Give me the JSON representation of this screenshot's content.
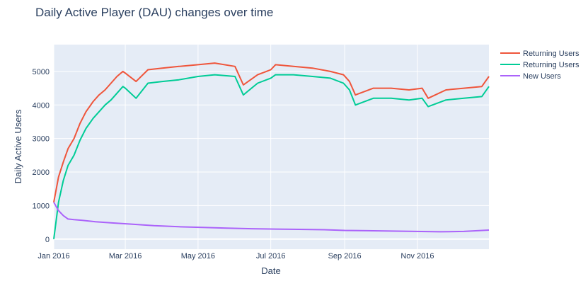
{
  "chart_data": {
    "type": "line",
    "title": "Daily Active Player (DAU) changes over time",
    "xlabel": "Date",
    "ylabel": "Daily Active Users",
    "x_range": [
      "2016-01-01",
      "2016-12-31"
    ],
    "ylim": [
      -300,
      5800
    ],
    "x_ticks": [
      {
        "date": "2016-01-01",
        "label": "Jan 2016"
      },
      {
        "date": "2016-03-01",
        "label": "Mar 2016"
      },
      {
        "date": "2016-05-01",
        "label": "May 2016"
      },
      {
        "date": "2016-07-01",
        "label": "Jul 2016"
      },
      {
        "date": "2016-09-01",
        "label": "Sep 2016"
      },
      {
        "date": "2016-11-01",
        "label": "Nov 2016"
      }
    ],
    "y_ticks": [
      0,
      1000,
      2000,
      3000,
      4000,
      5000
    ],
    "grid": true,
    "legend_position": "top-right",
    "background_color": "#e5ecf6",
    "series": [
      {
        "name": "Returning Users",
        "color": "#ef553b",
        "points": [
          [
            "2016-01-01",
            1100
          ],
          [
            "2016-01-05",
            1850
          ],
          [
            "2016-01-09",
            2300
          ],
          [
            "2016-01-13",
            2700
          ],
          [
            "2016-01-18",
            3000
          ],
          [
            "2016-01-23",
            3450
          ],
          [
            "2016-01-28",
            3800
          ],
          [
            "2016-02-03",
            4100
          ],
          [
            "2016-02-08",
            4300
          ],
          [
            "2016-02-13",
            4450
          ],
          [
            "2016-02-18",
            4650
          ],
          [
            "2016-02-23",
            4850
          ],
          [
            "2016-02-28",
            5000
          ],
          [
            "2016-03-01",
            4950
          ],
          [
            "2016-03-10",
            4700
          ],
          [
            "2016-03-20",
            5050
          ],
          [
            "2016-04-01",
            5100
          ],
          [
            "2016-04-15",
            5150
          ],
          [
            "2016-05-01",
            5200
          ],
          [
            "2016-05-15",
            5250
          ],
          [
            "2016-06-01",
            5150
          ],
          [
            "2016-06-08",
            4600
          ],
          [
            "2016-06-20",
            4900
          ],
          [
            "2016-07-01",
            5050
          ],
          [
            "2016-07-05",
            5200
          ],
          [
            "2016-07-20",
            5150
          ],
          [
            "2016-08-05",
            5100
          ],
          [
            "2016-08-20",
            5000
          ],
          [
            "2016-08-31",
            4900
          ],
          [
            "2016-09-05",
            4700
          ],
          [
            "2016-09-10",
            4300
          ],
          [
            "2016-09-25",
            4500
          ],
          [
            "2016-10-10",
            4500
          ],
          [
            "2016-10-25",
            4450
          ],
          [
            "2016-11-05",
            4500
          ],
          [
            "2016-11-10",
            4200
          ],
          [
            "2016-11-25",
            4450
          ],
          [
            "2016-12-10",
            4500
          ],
          [
            "2016-12-25",
            4550
          ],
          [
            "2016-12-31",
            4850
          ]
        ]
      },
      {
        "name": "Returning Users",
        "color": "#00cc96",
        "points": [
          [
            "2016-01-01",
            0
          ],
          [
            "2016-01-05",
            1100
          ],
          [
            "2016-01-09",
            1750
          ],
          [
            "2016-01-13",
            2200
          ],
          [
            "2016-01-18",
            2500
          ],
          [
            "2016-01-23",
            2950
          ],
          [
            "2016-01-28",
            3300
          ],
          [
            "2016-02-03",
            3600
          ],
          [
            "2016-02-08",
            3800
          ],
          [
            "2016-02-13",
            4000
          ],
          [
            "2016-02-18",
            4150
          ],
          [
            "2016-02-23",
            4350
          ],
          [
            "2016-02-28",
            4550
          ],
          [
            "2016-03-01",
            4500
          ],
          [
            "2016-03-10",
            4200
          ],
          [
            "2016-03-20",
            4650
          ],
          [
            "2016-04-01",
            4700
          ],
          [
            "2016-04-15",
            4750
          ],
          [
            "2016-05-01",
            4850
          ],
          [
            "2016-05-15",
            4900
          ],
          [
            "2016-06-01",
            4850
          ],
          [
            "2016-06-08",
            4300
          ],
          [
            "2016-06-20",
            4650
          ],
          [
            "2016-07-01",
            4800
          ],
          [
            "2016-07-05",
            4900
          ],
          [
            "2016-07-20",
            4900
          ],
          [
            "2016-08-05",
            4850
          ],
          [
            "2016-08-20",
            4800
          ],
          [
            "2016-08-31",
            4650
          ],
          [
            "2016-09-05",
            4450
          ],
          [
            "2016-09-10",
            4000
          ],
          [
            "2016-09-25",
            4200
          ],
          [
            "2016-10-10",
            4200
          ],
          [
            "2016-10-25",
            4150
          ],
          [
            "2016-11-05",
            4200
          ],
          [
            "2016-11-10",
            3950
          ],
          [
            "2016-11-25",
            4150
          ],
          [
            "2016-12-10",
            4200
          ],
          [
            "2016-12-25",
            4250
          ],
          [
            "2016-12-31",
            4550
          ]
        ]
      },
      {
        "name": "New Users",
        "color": "#ab63fa",
        "points": [
          [
            "2016-01-01",
            1100
          ],
          [
            "2016-01-05",
            850
          ],
          [
            "2016-01-09",
            700
          ],
          [
            "2016-01-13",
            600
          ],
          [
            "2016-01-18",
            580
          ],
          [
            "2016-01-25",
            560
          ],
          [
            "2016-02-05",
            520
          ],
          [
            "2016-02-20",
            480
          ],
          [
            "2016-03-05",
            450
          ],
          [
            "2016-03-25",
            400
          ],
          [
            "2016-04-15",
            370
          ],
          [
            "2016-05-05",
            350
          ],
          [
            "2016-05-25",
            330
          ],
          [
            "2016-06-15",
            310
          ],
          [
            "2016-07-05",
            300
          ],
          [
            "2016-07-25",
            290
          ],
          [
            "2016-08-15",
            280
          ],
          [
            "2016-09-01",
            260
          ],
          [
            "2016-09-20",
            250
          ],
          [
            "2016-10-10",
            240
          ],
          [
            "2016-10-30",
            230
          ],
          [
            "2016-11-20",
            220
          ],
          [
            "2016-12-10",
            230
          ],
          [
            "2016-12-31",
            270
          ]
        ]
      }
    ]
  }
}
